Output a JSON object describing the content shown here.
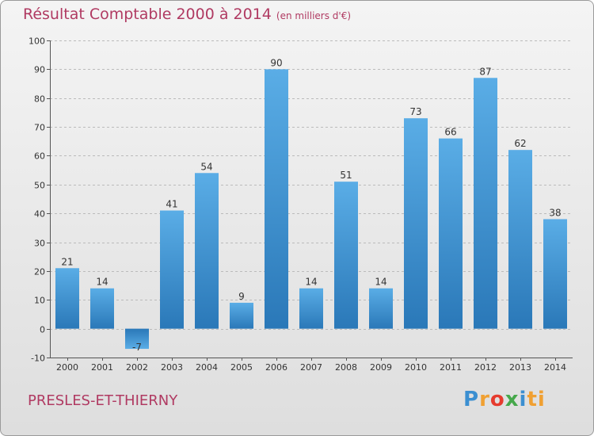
{
  "title": "Résultat Comptable 2000 à 2014",
  "subtitle": "(en milliers d'€)",
  "commune": "PRESLES-ET-THIERNY",
  "logo": [
    "P",
    "r",
    "o",
    "x",
    "i",
    "ti"
  ],
  "chart_data": {
    "type": "bar",
    "title": "Résultat Comptable 2000 à 2014",
    "subtitle": "(en milliers d'€)",
    "categories": [
      "2000",
      "2001",
      "2002",
      "2003",
      "2004",
      "2005",
      "2006",
      "2007",
      "2008",
      "2009",
      "2010",
      "2011",
      "2012",
      "2013",
      "2014"
    ],
    "values": [
      21,
      14,
      -7,
      41,
      54,
      9,
      90,
      14,
      51,
      14,
      73,
      66,
      87,
      62,
      38
    ],
    "ylim": [
      -10,
      100
    ],
    "yticks": [
      -10,
      0,
      10,
      20,
      30,
      40,
      50,
      60,
      70,
      80,
      90,
      100
    ],
    "xlabel": "",
    "ylabel": "",
    "colors": {
      "bar_top": "#5aade6",
      "bar_bottom": "#2a78b8",
      "grid": "#bbbbbb"
    }
  }
}
